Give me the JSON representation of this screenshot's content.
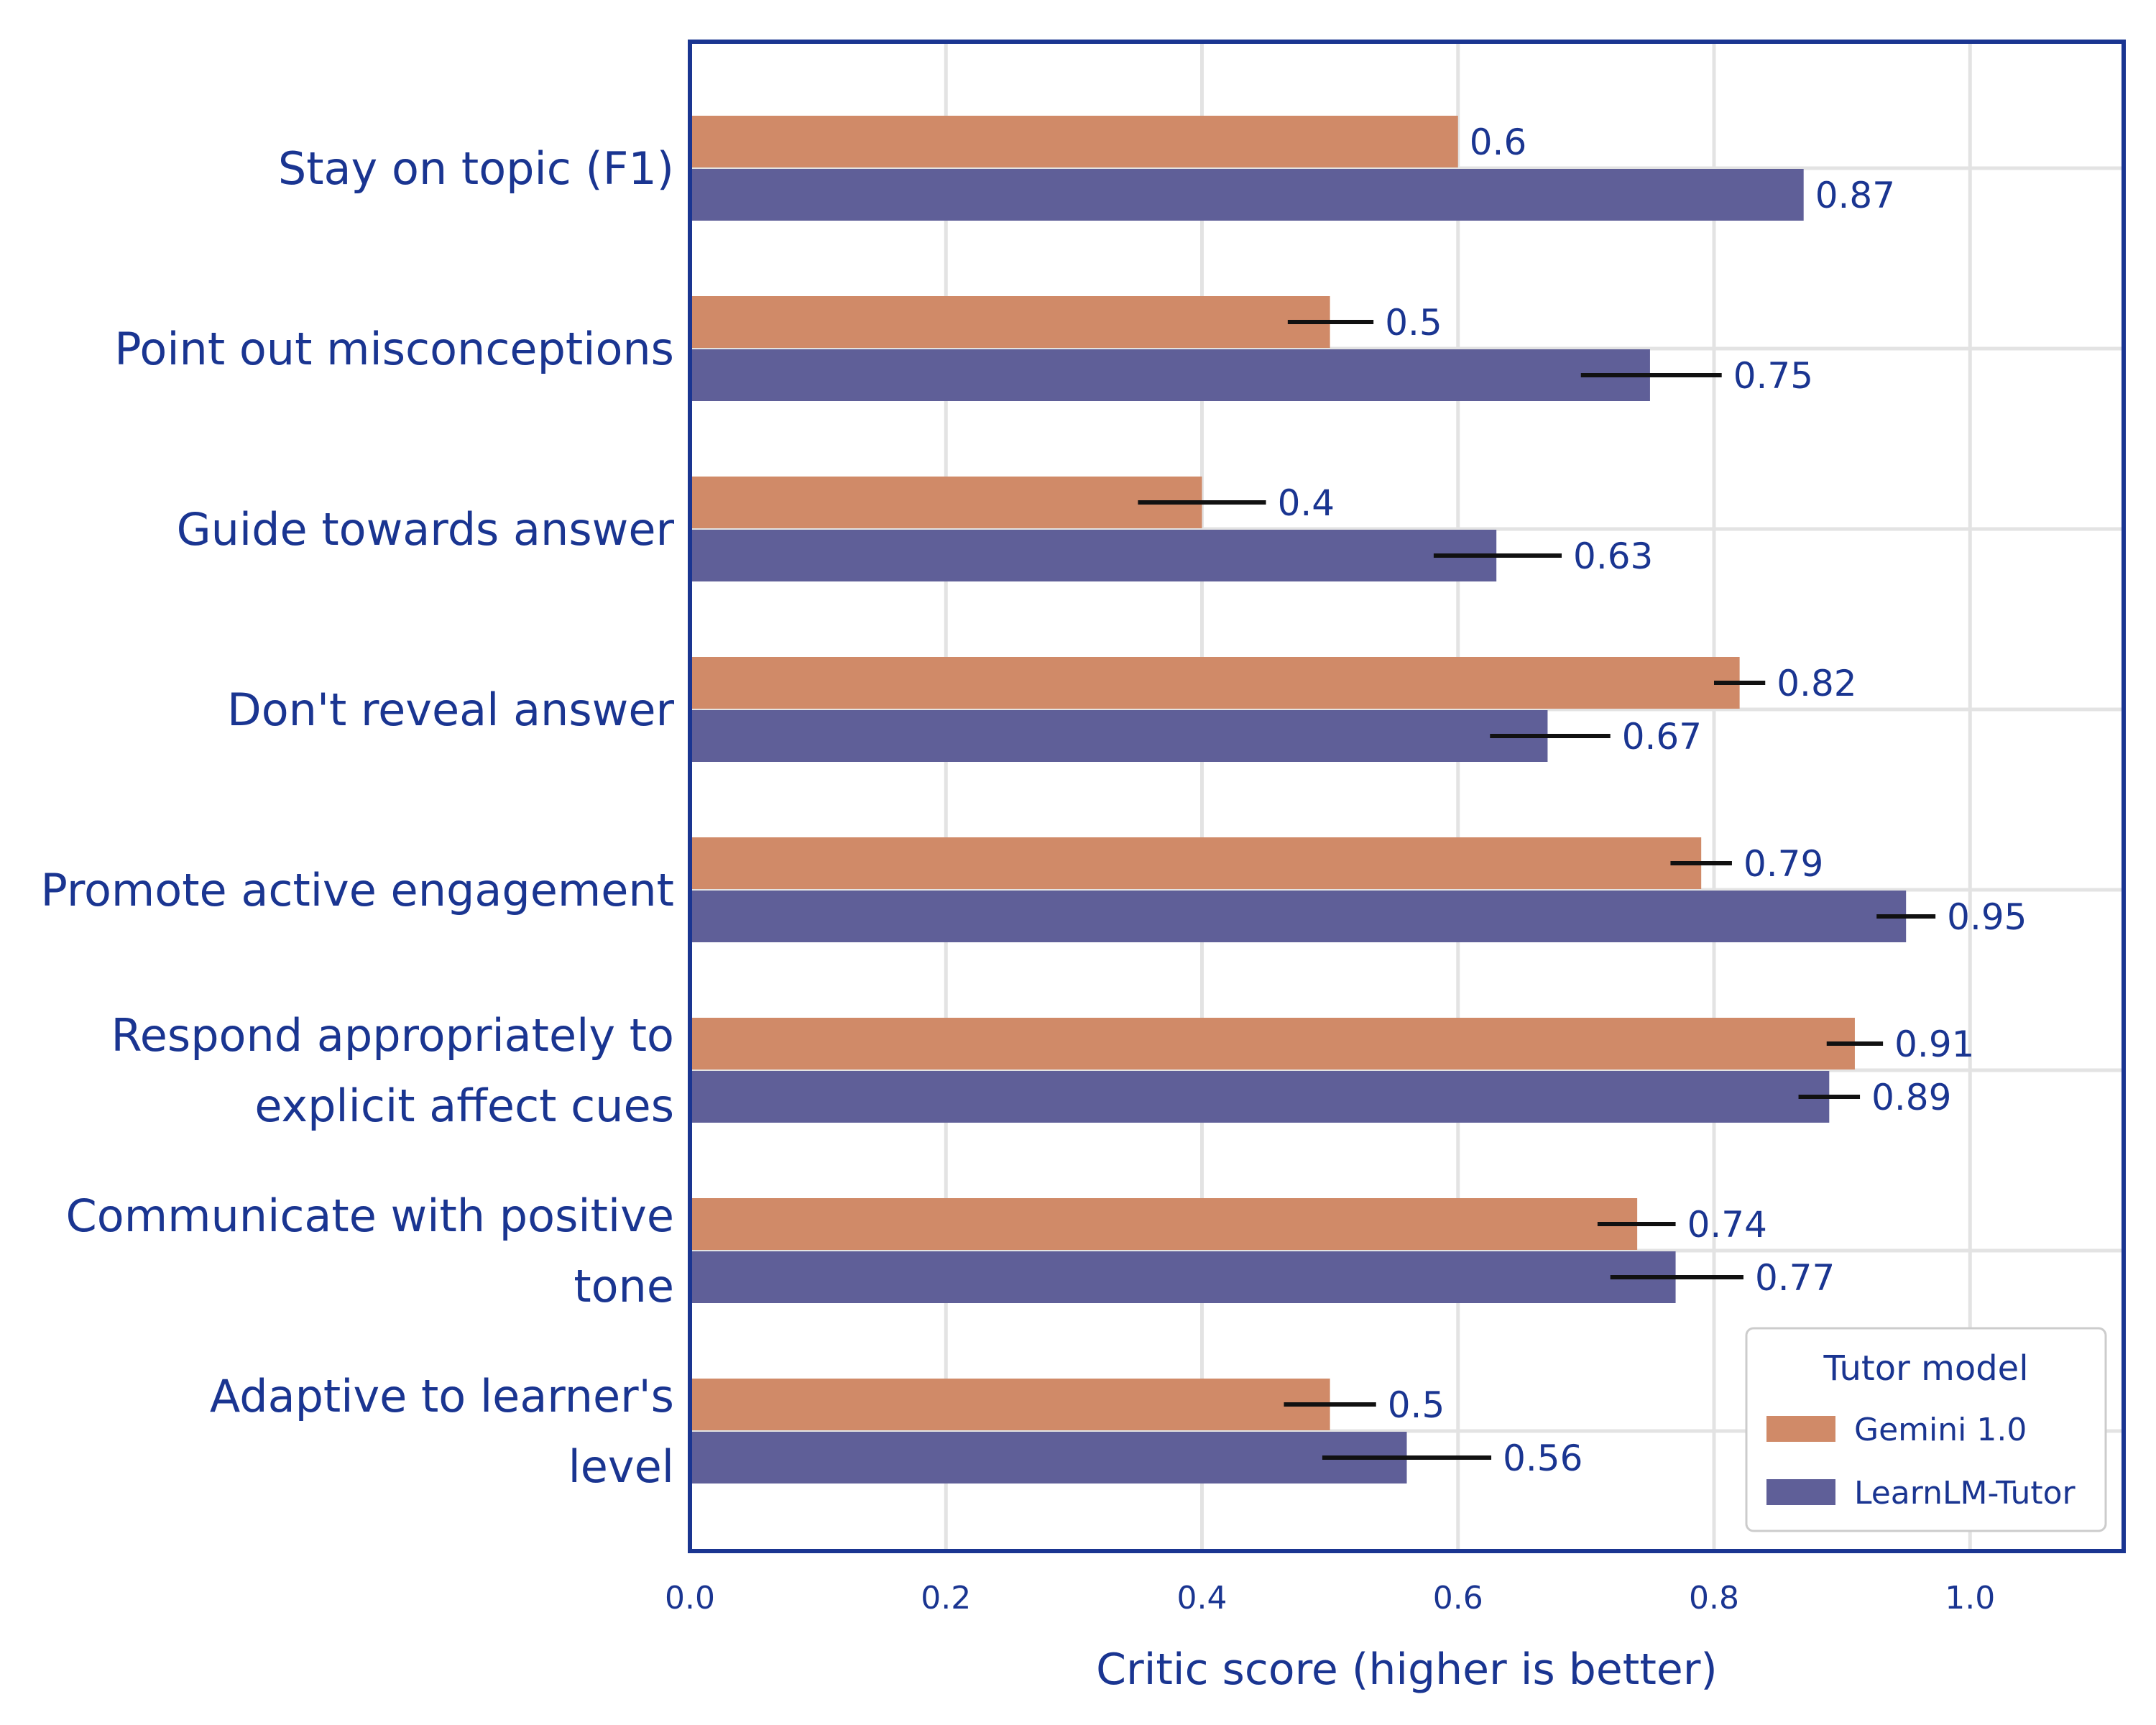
{
  "colors": {
    "gemini": "#d08a68",
    "learnlm": "#5f5f98",
    "text": "#1a3591",
    "frame": "#1a3591",
    "grid": "#e3e3e3",
    "error_bar": "#111111"
  },
  "chart_data": {
    "type": "bar",
    "orientation": "horizontal",
    "categories": [
      [
        "Stay on topic (F1)"
      ],
      [
        "Point out misconceptions"
      ],
      [
        "Guide towards answer"
      ],
      [
        "Don't reveal answer"
      ],
      [
        "Promote active engagement"
      ],
      [
        "Respond appropriately to",
        "explicit affect cues"
      ],
      [
        "Communicate with positive",
        "tone"
      ],
      [
        "Adaptive to learner's",
        "level"
      ]
    ],
    "series": [
      {
        "name": "Gemini 1.0",
        "color": "#d08a68",
        "values": [
          0.6,
          0.5,
          0.4,
          0.82,
          0.79,
          0.91,
          0.74,
          0.5
        ],
        "value_labels": [
          "0.6",
          "0.5",
          "0.4",
          "0.82",
          "0.79",
          "0.91",
          "0.74",
          "0.5"
        ],
        "error_low": [
          null,
          0.467,
          0.35,
          0.8,
          0.766,
          0.888,
          0.709,
          0.464
        ],
        "error_high": [
          null,
          0.534,
          0.45,
          0.84,
          0.814,
          0.932,
          0.77,
          0.536
        ]
      },
      {
        "name": "LearnLM-Tutor",
        "color": "#5f5f98",
        "values": [
          0.87,
          0.75,
          0.63,
          0.67,
          0.95,
          0.89,
          0.77,
          0.56
        ],
        "value_labels": [
          "0.87",
          "0.75",
          "0.63",
          "0.67",
          "0.95",
          "0.89",
          "0.77",
          "0.56"
        ],
        "error_low": [
          null,
          0.696,
          0.581,
          0.625,
          0.927,
          0.866,
          0.719,
          0.494
        ],
        "error_high": [
          null,
          0.806,
          0.681,
          0.719,
          0.973,
          0.914,
          0.823,
          0.626
        ]
      }
    ],
    "xlabel": "Critic score (higher is better)",
    "ylabel": "",
    "xlim": [
      0,
      1.12
    ],
    "xticks": [
      0.0,
      0.2,
      0.4,
      0.6,
      0.8,
      1.0
    ],
    "xtick_labels": [
      "0.0",
      "0.2",
      "0.4",
      "0.6",
      "0.8",
      "1.0"
    ],
    "grid": true,
    "legend": {
      "title": "Tutor model",
      "placement": "bottom-right",
      "entries": [
        "Gemini 1.0",
        "LearnLM-Tutor"
      ]
    }
  }
}
